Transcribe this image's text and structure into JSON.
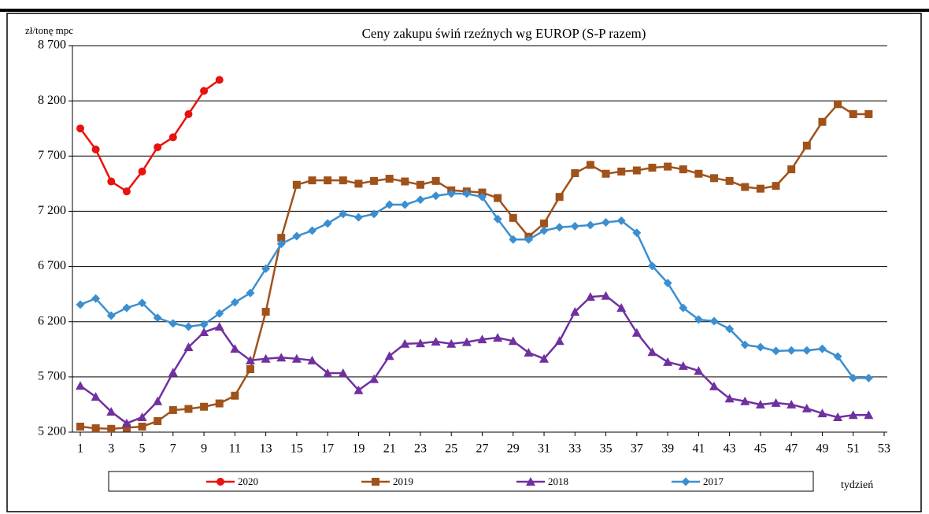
{
  "chart_data": {
    "type": "line",
    "title": "Ceny zakupu świń rzeźnych wg EUROP (S-P razem)",
    "y_label": "zł/tonę  mpc",
    "x_label": "tydzień",
    "x": [
      1,
      2,
      3,
      4,
      5,
      6,
      7,
      8,
      9,
      10,
      11,
      12,
      13,
      14,
      15,
      16,
      17,
      18,
      19,
      20,
      21,
      22,
      23,
      24,
      25,
      26,
      27,
      28,
      29,
      30,
      31,
      32,
      33,
      34,
      35,
      36,
      37,
      38,
      39,
      40,
      41,
      42,
      43,
      44,
      45,
      46,
      47,
      48,
      49,
      50,
      51,
      52
    ],
    "xlim": [
      1,
      53
    ],
    "xticks": [
      1,
      3,
      5,
      7,
      9,
      11,
      13,
      15,
      17,
      19,
      21,
      23,
      25,
      27,
      29,
      31,
      33,
      35,
      37,
      39,
      41,
      43,
      45,
      47,
      49,
      51,
      53
    ],
    "ylim": [
      5200,
      8700
    ],
    "yticks": [
      {
        "value": 5200,
        "label": "5 200"
      },
      {
        "value": 5700,
        "label": "5 700"
      },
      {
        "value": 6200,
        "label": "6 200"
      },
      {
        "value": 6700,
        "label": "6 700"
      },
      {
        "value": 7200,
        "label": "7 200"
      },
      {
        "value": 7700,
        "label": "7 700"
      },
      {
        "value": 8200,
        "label": "8 200"
      },
      {
        "value": 8700,
        "label": "8 700"
      }
    ],
    "grid": true,
    "legend": "bottom",
    "series": [
      {
        "name": "2020",
        "color": "#e8120f",
        "marker": "circle",
        "values": [
          7950,
          7760,
          7470,
          7380,
          7560,
          7780,
          7870,
          8080,
          8290,
          8390,
          null,
          null,
          null,
          null,
          null,
          null,
          null,
          null,
          null,
          null,
          null,
          null,
          null,
          null,
          null,
          null,
          null,
          null,
          null,
          null,
          null,
          null,
          null,
          null,
          null,
          null,
          null,
          null,
          null,
          null,
          null,
          null,
          null,
          null,
          null,
          null,
          null,
          null,
          null,
          null,
          null,
          null
        ]
      },
      {
        "name": "2019",
        "color": "#a0521b",
        "marker": "square",
        "values": [
          5250,
          5235,
          5230,
          5240,
          5250,
          5300,
          5400,
          5410,
          5430,
          5460,
          5530,
          5770,
          6290,
          6960,
          7440,
          7480,
          7480,
          7480,
          7450,
          7475,
          7495,
          7470,
          7440,
          7475,
          7390,
          7380,
          7370,
          7320,
          7140,
          6970,
          7090,
          7330,
          7545,
          7620,
          7540,
          7560,
          7570,
          7595,
          7605,
          7580,
          7540,
          7500,
          7475,
          7420,
          7405,
          7430,
          7580,
          7795,
          8010,
          8170,
          8080,
          8080
        ]
      },
      {
        "name": "2018",
        "color": "#7030a0",
        "marker": "triangle",
        "values": [
          5620,
          5520,
          5385,
          5280,
          5335,
          5480,
          5740,
          5970,
          6105,
          6155,
          5955,
          5850,
          5865,
          5875,
          5865,
          5850,
          5735,
          5735,
          5580,
          5680,
          5890,
          6000,
          6005,
          6020,
          6000,
          6015,
          6040,
          6055,
          6025,
          5920,
          5865,
          6025,
          6290,
          6425,
          6435,
          6325,
          6100,
          5925,
          5835,
          5800,
          5755,
          5615,
          5505,
          5480,
          5450,
          5465,
          5450,
          5415,
          5370,
          5335,
          5355,
          5355
        ]
      },
      {
        "name": "2017",
        "color": "#3b8fd0",
        "marker": "diamond",
        "values": [
          6355,
          6410,
          6255,
          6325,
          6370,
          6235,
          6185,
          6155,
          6175,
          6275,
          6375,
          6460,
          6680,
          6905,
          6975,
          7025,
          7090,
          7175,
          7145,
          7175,
          7260,
          7260,
          7305,
          7340,
          7360,
          7360,
          7330,
          7130,
          6945,
          6945,
          7025,
          7055,
          7065,
          7075,
          7100,
          7115,
          7005,
          6705,
          6550,
          6325,
          6220,
          6205,
          6135,
          5990,
          5970,
          5935,
          5940,
          5940,
          5955,
          5885,
          5690,
          5690
        ]
      }
    ]
  }
}
